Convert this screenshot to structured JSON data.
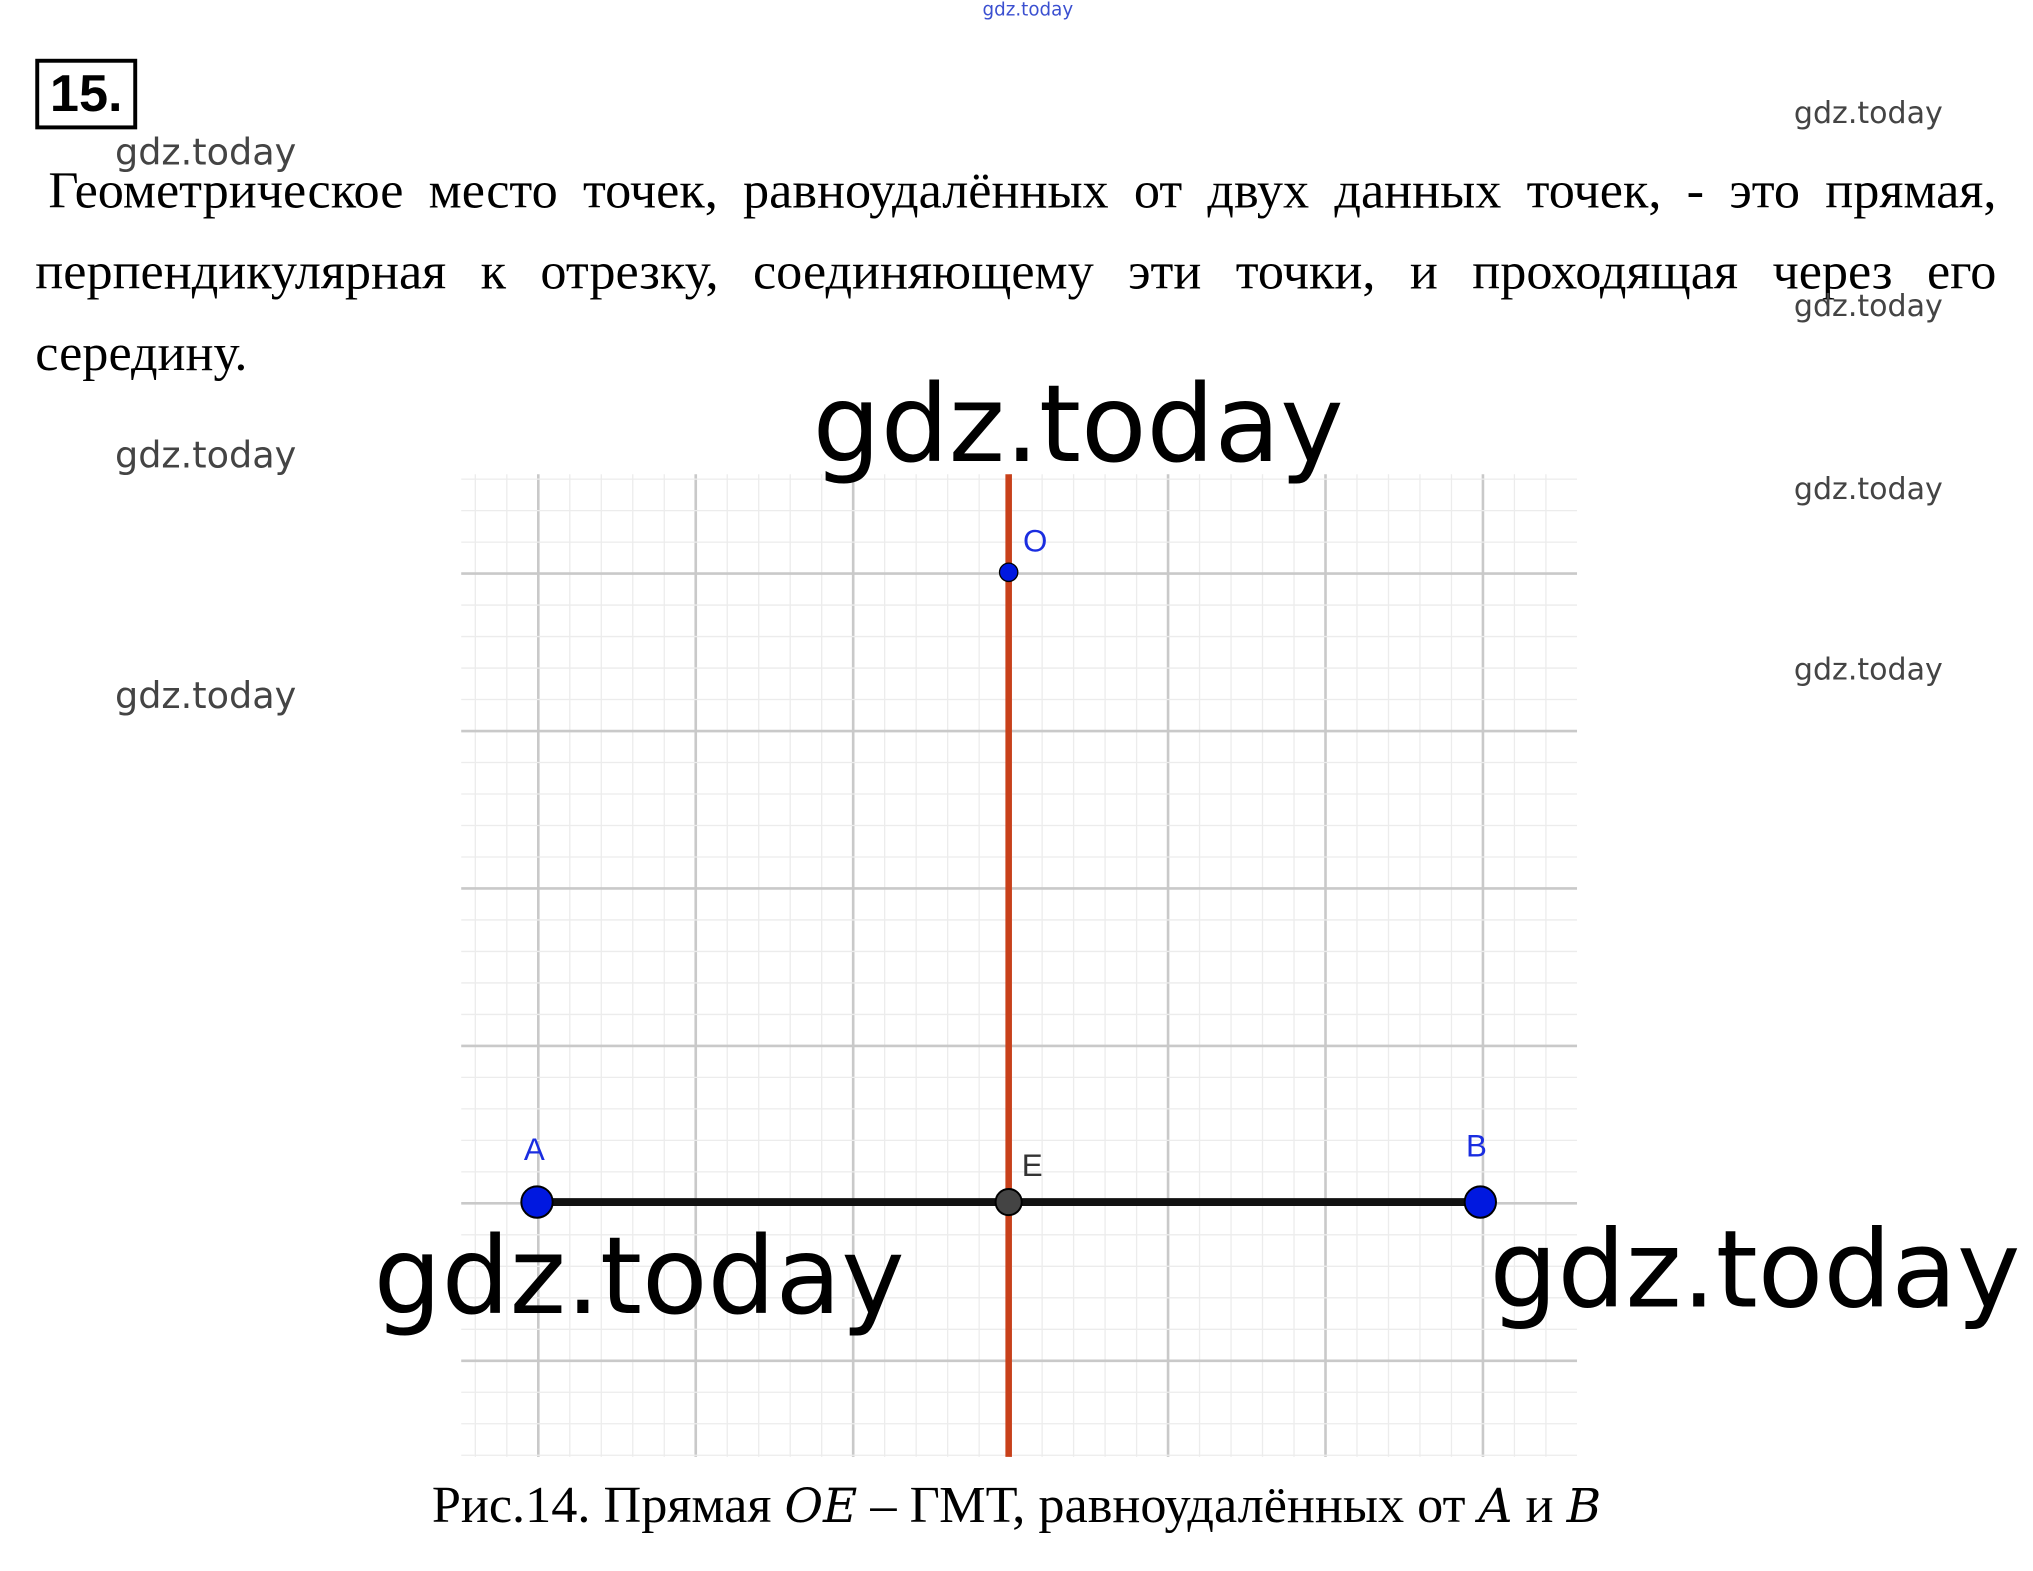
{
  "problem_number": "15.",
  "paragraph": "Геометрическое место точек, равноудалённых от двух данных точек, - это прямая, перпендикулярная к отрезку, соединяющему эти точки, и проходящая через его середину.",
  "figure": {
    "points": {
      "O": "O",
      "E": "E",
      "A": "A",
      "B": "B"
    }
  },
  "caption": [
    "Рис.14. Прямая ",
    "OE",
    " – ГМТ, равноудалённых от ",
    "A",
    " и ",
    "B"
  ],
  "watermarks": [
    "gdz.today",
    "gdz.today",
    "gdz.today",
    "gdz.today",
    "gdz.today",
    "gdz.today",
    "gdz.today",
    "gdz.today",
    "gdz.today",
    "gdz.today",
    "gdz.today"
  ]
}
